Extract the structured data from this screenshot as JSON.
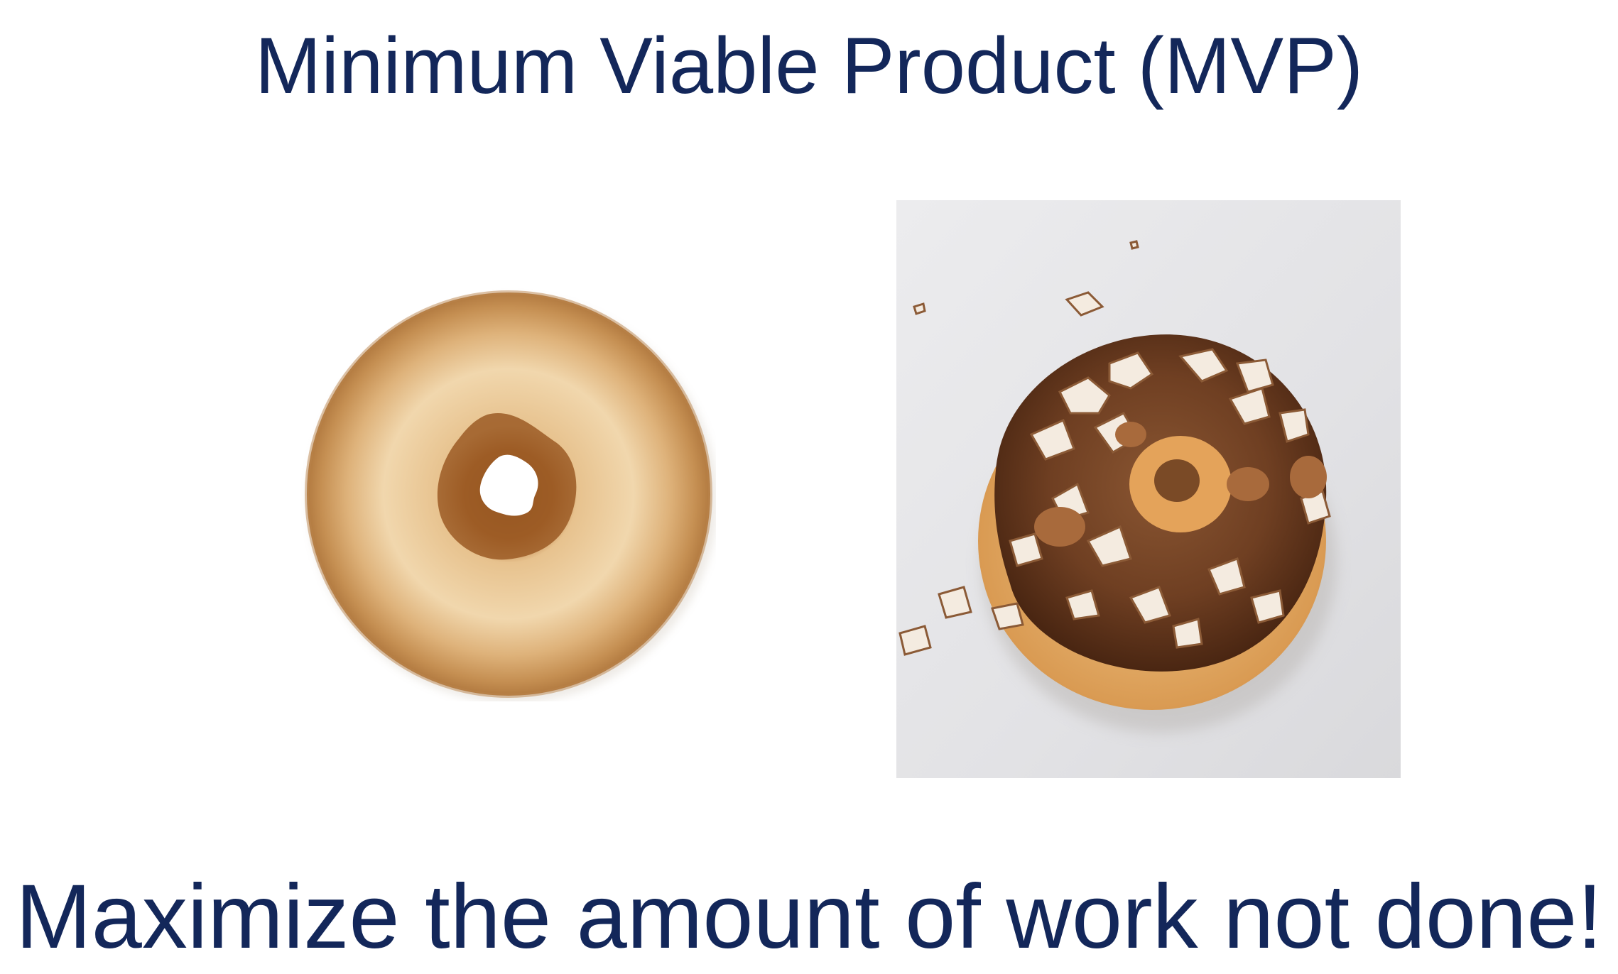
{
  "slide": {
    "title": "Minimum Viable Product (MVP)",
    "caption": "Maximize the amount of work not done!"
  },
  "images": {
    "left": "plain-donut-icon",
    "right": "frosted-donut-with-hazelnuts-photo"
  },
  "colors": {
    "text": "#13275a",
    "background": "#ffffff"
  }
}
